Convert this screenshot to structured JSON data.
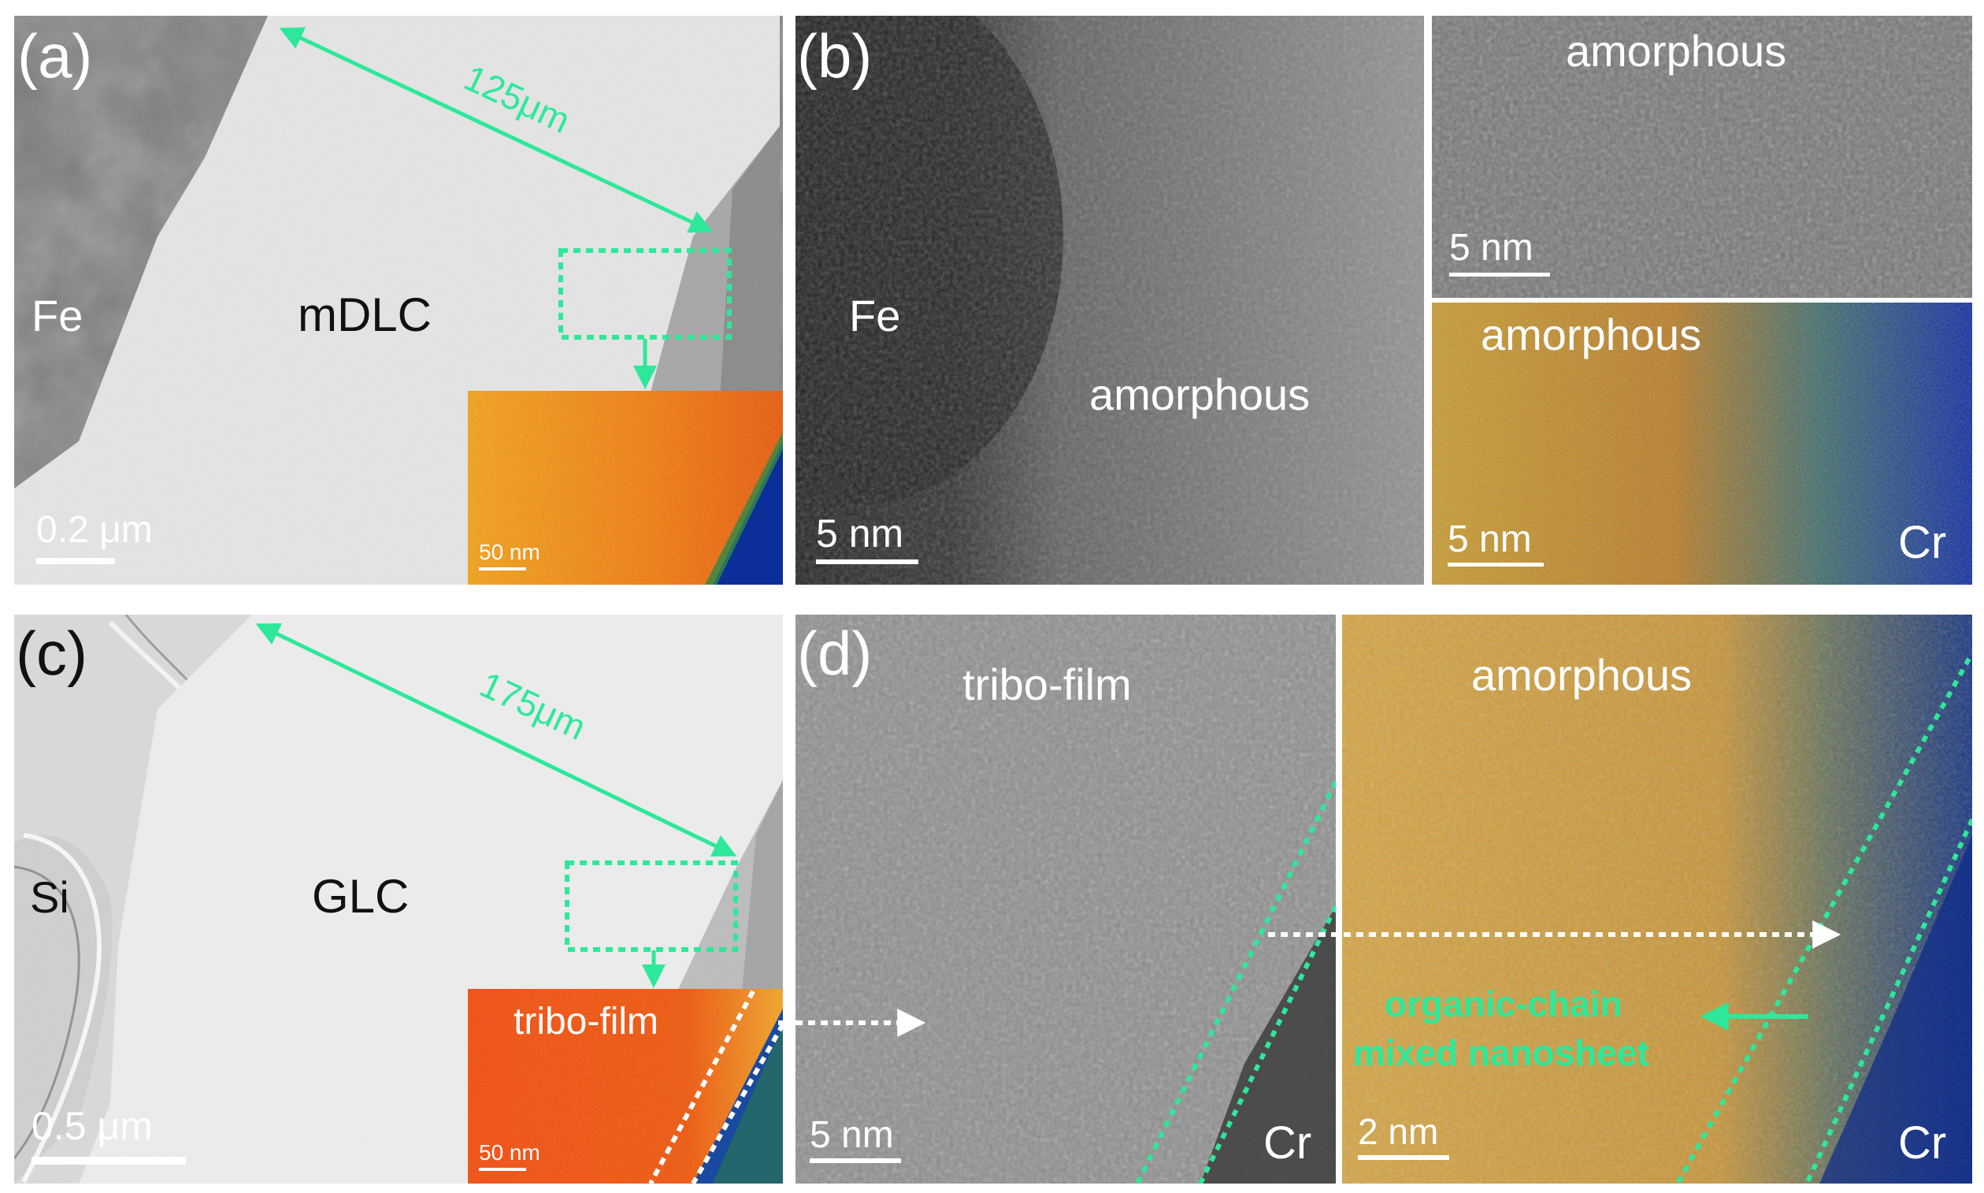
{
  "panels": {
    "a": {
      "letter": "(a)",
      "thickness": "125μm",
      "label_substrate": "Fe",
      "label_film": "mDLC",
      "scale_main": "0.2 μm",
      "scale_inset": "50 nm"
    },
    "b": {
      "letter": "(b)",
      "label_substrate": "Fe",
      "label_main": "amorphous",
      "scale_main": "5 nm",
      "top_right_label": "amorphous",
      "top_right_scale": "5 nm",
      "bottom_right_label": "amorphous",
      "bottom_right_scale": "5 nm",
      "bottom_right_element": "Cr"
    },
    "c": {
      "letter": "(c)",
      "thickness": "175μm",
      "label_substrate": "Si",
      "label_film": "GLC",
      "scale_main": "0.5 μm",
      "inset_label": "tribo-film",
      "scale_inset": "50 nm"
    },
    "d": {
      "letter": "(d)",
      "label_left": "tribo-film",
      "left_element": "Cr",
      "left_scale": "5 nm",
      "right_label": "amorphous",
      "right_annotation_line1": "organic-chain",
      "right_annotation_line2": "mixed nanosheet",
      "right_element": "Cr",
      "right_scale": "2 nm"
    }
  },
  "colors": {
    "accent": "#2ee89a",
    "inset_orange": "#f08a14",
    "inset_red": "#ef4a12",
    "cr_blue": "#0a2f9a"
  }
}
